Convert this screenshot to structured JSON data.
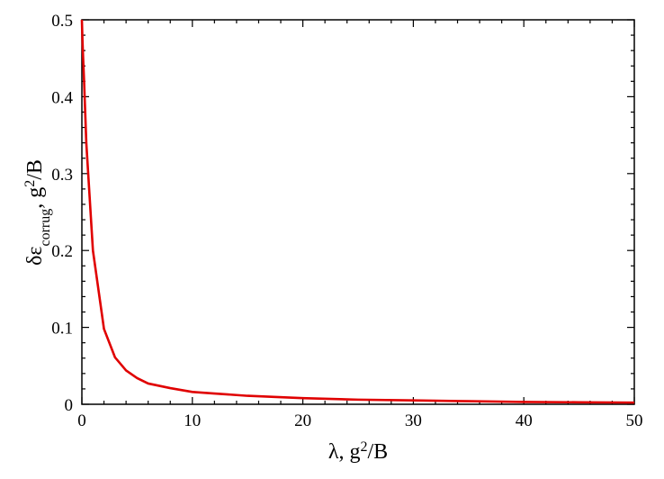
{
  "chart_data": {
    "type": "line",
    "title": "",
    "xlabel": "λ, g²/B",
    "xlabel_parts": {
      "main": "λ, g",
      "sup": "2",
      "tail": "/B"
    },
    "ylabel": "δε_corrug, g²/B",
    "ylabel_parts": {
      "main": "δε",
      "sub": "corrug",
      "mid": ", g",
      "sup": "2",
      "tail": "/B"
    },
    "xlim": [
      0,
      50
    ],
    "ylim": [
      0,
      0.5
    ],
    "xticks": [
      0,
      10,
      20,
      30,
      40,
      50
    ],
    "xtick_labels": [
      "0",
      "10",
      "20",
      "30",
      "40",
      "50"
    ],
    "yticks": [
      0,
      0.1,
      0.2,
      0.3,
      0.4,
      0.5
    ],
    "ytick_labels": [
      "0",
      "0.1",
      "0.2",
      "0.3",
      "0.4",
      "0.5"
    ],
    "grid": false,
    "legend": "none",
    "series": [
      {
        "color": "#e00000",
        "x": [
          0,
          0.05,
          0.1,
          0.2,
          0.4,
          0.7,
          1,
          2,
          3,
          4,
          5,
          6,
          8,
          10,
          12,
          15,
          20,
          25,
          30,
          35,
          40,
          45,
          50
        ],
        "y": [
          0.5,
          0.475,
          0.455,
          0.42,
          0.34,
          0.27,
          0.2,
          0.098,
          0.061,
          0.044,
          0.034,
          0.027,
          0.021,
          0.016,
          0.014,
          0.011,
          0.008,
          0.006,
          0.005,
          0.004,
          0.003,
          0.0026,
          0.0022
        ]
      }
    ]
  }
}
